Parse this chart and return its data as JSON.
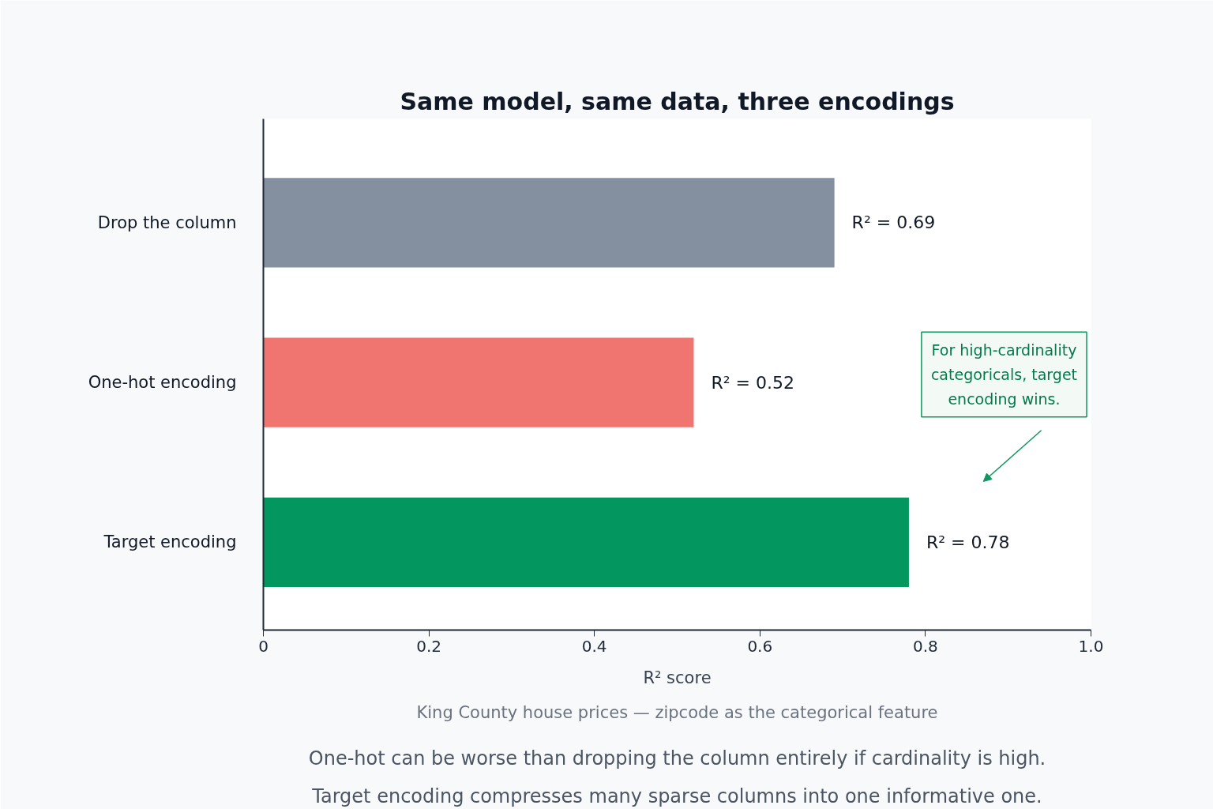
{
  "chart_data": {
    "type": "bar",
    "orientation": "horizontal",
    "title": "Same model, same data, three encodings",
    "categories": [
      "Drop the column",
      "One-hot encoding",
      "Target encoding"
    ],
    "values": [
      0.69,
      0.52,
      0.78
    ],
    "colors": [
      "#848fa0",
      "#f07470",
      "#03965e"
    ],
    "value_labels": [
      "R² = 0.69",
      "R² = 0.52",
      "R² = 0.78"
    ],
    "xlabel": "R² score",
    "xlim": [
      0,
      1.0
    ],
    "xticks": [
      0,
      0.2,
      0.4,
      0.6,
      0.8,
      {
        "value": 1.0,
        "label": "1.0"
      }
    ],
    "grid": false,
    "annotations": [
      "For high-cardinality\ncategoricals, target\nencoding wins.",
      "King County house prices — zipcode as the categorical feature",
      "One-hot can be worse than dropping the column entirely if cardinality is high.",
      "Target encoding compresses many sparse columns into one informative one."
    ]
  }
}
